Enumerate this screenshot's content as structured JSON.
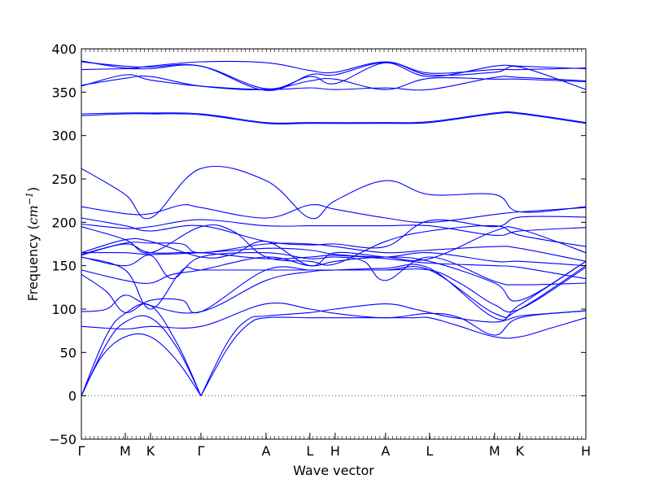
{
  "chart_data": {
    "type": "line",
    "xlabel": "Wave vector",
    "ylabel": "Frequency (cm⁻¹)",
    "ylabel_prefix": "Frequency (",
    "ylabel_unit": "cm",
    "ylabel_exp": "−1",
    "ylabel_suffix": ")",
    "ylim": [
      -50,
      400
    ],
    "yticks": [
      -50,
      0,
      50,
      100,
      150,
      200,
      250,
      300,
      350,
      400
    ],
    "ytick_labels": [
      "−50",
      "0",
      "50",
      "100",
      "150",
      "200",
      "250",
      "300",
      "350",
      "400"
    ],
    "xlim": [
      0,
      1
    ],
    "xticks": [
      {
        "label": "Γ",
        "x": 0.0
      },
      {
        "label": "M",
        "x": 0.087
      },
      {
        "label": "K",
        "x": 0.137
      },
      {
        "label": "Γ",
        "x": 0.237
      },
      {
        "label": "A",
        "x": 0.366
      },
      {
        "label": "L",
        "x": 0.453
      },
      {
        "label": "H",
        "x": 0.503
      },
      {
        "label": "A",
        "x": 0.603
      },
      {
        "label": "L",
        "x": 0.69
      },
      {
        "label": "M",
        "x": 0.819
      },
      {
        "label": "K",
        "x": 0.869
      },
      {
        "label": "H",
        "x": 1.0
      }
    ],
    "zero_line": {
      "y": 0,
      "style": "dotted"
    },
    "series_color": "#0000ff",
    "grid": false,
    "series": [
      {
        "x": [
          0,
          0.04,
          0.087,
          0.137,
          0.19,
          0.237
        ],
        "values": [
          0,
          45,
          68,
          68,
          40,
          0
        ]
      },
      {
        "x": [
          0,
          0.05,
          0.087,
          0.137,
          0.19,
          0.237
        ],
        "values": [
          0,
          60,
          85,
          90,
          55,
          0
        ]
      },
      {
        "x": [
          0,
          0.05,
          0.087,
          0.137,
          0.19,
          0.237
        ],
        "values": [
          0,
          70,
          95,
          104,
          60,
          0
        ]
      },
      {
        "x": [
          0.237,
          0.29,
          0.33,
          0.366,
          0.453,
          0.503,
          0.603,
          0.66,
          0.69,
          0.74,
          0.819,
          0.869,
          0.93,
          1.0
        ],
        "values": [
          0,
          55,
          82,
          90,
          90,
          90,
          90,
          90,
          90,
          82,
          68,
          68,
          78,
          90
        ]
      },
      {
        "x": [
          0.237,
          0.29,
          0.33,
          0.366,
          0.453,
          0.503,
          0.603,
          0.66,
          0.69,
          0.74,
          0.819,
          0.869,
          0.93,
          1.0
        ],
        "values": [
          0,
          62,
          88,
          92,
          96,
          100,
          106,
          100,
          96,
          90,
          85,
          92,
          95,
          98
        ]
      },
      {
        "x": [
          0,
          0.087,
          0.137,
          0.237,
          0.366,
          0.453,
          0.503,
          0.603,
          0.69,
          0.75,
          0.819,
          0.869,
          1.0
        ],
        "values": [
          80,
          77,
          80,
          80,
          106,
          100,
          95,
          90,
          95,
          90,
          70,
          90,
          98
        ]
      },
      {
        "x": [
          0,
          0.05,
          0.087,
          0.137,
          0.237,
          0.366,
          0.453,
          0.503,
          0.603,
          0.69,
          0.819,
          0.869,
          1.0
        ],
        "values": [
          97,
          100,
          116,
          104,
          97,
          133,
          143,
          145,
          147,
          147,
          90,
          105,
          155
        ]
      },
      {
        "x": [
          0,
          0.05,
          0.087,
          0.137,
          0.2,
          0.237,
          0.366,
          0.453,
          0.503,
          0.603,
          0.69,
          0.819,
          0.869,
          1.0
        ],
        "values": [
          140,
          120,
          96,
          110,
          110,
          97,
          145,
          145,
          145,
          145,
          145,
          95,
          100,
          150
        ]
      },
      {
        "x": [
          0,
          0.087,
          0.137,
          0.2,
          0.237,
          0.366,
          0.453,
          0.503,
          0.603,
          0.69,
          0.75,
          0.819,
          0.869,
          1.0
        ],
        "values": [
          160,
          145,
          100,
          145,
          145,
          145,
          145,
          145,
          145,
          145,
          130,
          105,
          100,
          148
        ]
      },
      {
        "x": [
          0,
          0.087,
          0.137,
          0.18,
          0.237,
          0.366,
          0.453,
          0.503,
          0.603,
          0.69,
          0.819,
          0.869,
          1.0
        ],
        "values": [
          145,
          133,
          130,
          140,
          145,
          160,
          150,
          155,
          160,
          155,
          130,
          110,
          155
        ]
      },
      {
        "x": [
          0,
          0.087,
          0.137,
          0.18,
          0.237,
          0.366,
          0.453,
          0.503,
          0.56,
          0.603,
          0.69,
          0.819,
          0.869,
          1.0
        ],
        "values": [
          160,
          150,
          162,
          135,
          160,
          165,
          158,
          160,
          155,
          133,
          160,
          132,
          128,
          130
        ]
      },
      {
        "x": [
          0,
          0.087,
          0.137,
          0.237,
          0.366,
          0.453,
          0.503,
          0.603,
          0.69,
          0.819,
          0.869,
          1.0
        ],
        "values": [
          162,
          175,
          165,
          165,
          158,
          160,
          162,
          158,
          153,
          150,
          148,
          135
        ]
      },
      {
        "x": [
          0,
          0.087,
          0.137,
          0.237,
          0.366,
          0.453,
          0.503,
          0.603,
          0.69,
          0.819,
          0.869,
          1.0
        ],
        "values": [
          165,
          165,
          163,
          165,
          170,
          168,
          163,
          160,
          165,
          155,
          155,
          150
        ]
      },
      {
        "x": [
          0,
          0.087,
          0.137,
          0.2,
          0.237,
          0.366,
          0.453,
          0.503,
          0.603,
          0.69,
          0.819,
          0.869,
          1.0
        ],
        "values": [
          163,
          176,
          176,
          175,
          165,
          175,
          175,
          172,
          165,
          168,
          172,
          170,
          155
        ]
      },
      {
        "x": [
          0,
          0.087,
          0.137,
          0.237,
          0.3,
          0.366,
          0.453,
          0.503,
          0.603,
          0.69,
          0.819,
          0.869,
          1.0
        ],
        "values": [
          165,
          180,
          178,
          160,
          163,
          178,
          150,
          165,
          160,
          158,
          190,
          192,
          165
        ]
      },
      {
        "x": [
          0,
          0.087,
          0.137,
          0.237,
          0.3,
          0.366,
          0.453,
          0.503,
          0.603,
          0.69,
          0.819,
          0.869,
          1.0
        ],
        "values": [
          195,
          180,
          165,
          195,
          190,
          160,
          155,
          152,
          178,
          190,
          196,
          185,
          172
        ]
      },
      {
        "x": [
          0,
          0.087,
          0.137,
          0.237,
          0.366,
          0.453,
          0.503,
          0.603,
          0.69,
          0.819,
          0.869,
          1.0
        ],
        "values": [
          198,
          193,
          195,
          203,
          196,
          196,
          196,
          196,
          196,
          185,
          190,
          194
        ]
      },
      {
        "x": [
          0,
          0.087,
          0.137,
          0.237,
          0.366,
          0.453,
          0.503,
          0.603,
          0.69,
          0.819,
          0.869,
          1.0
        ],
        "values": [
          205,
          196,
          190,
          196,
          178,
          174,
          175,
          172,
          202,
          195,
          206,
          206
        ]
      },
      {
        "x": [
          0,
          0.087,
          0.137,
          0.2,
          0.237,
          0.366,
          0.453,
          0.503,
          0.603,
          0.69,
          0.819,
          0.869,
          1.0
        ],
        "values": [
          218,
          210,
          210,
          220,
          217,
          205,
          220,
          215,
          205,
          200,
          209,
          212,
          217
        ]
      },
      {
        "x": [
          0,
          0.087,
          0.137,
          0.237,
          0.366,
          0.453,
          0.503,
          0.603,
          0.69,
          0.819,
          0.869,
          1.0
        ],
        "values": [
          262,
          232,
          205,
          262,
          248,
          205,
          225,
          248,
          232,
          232,
          212,
          218
        ]
      },
      {
        "x": [
          0,
          0.087,
          0.137,
          0.237,
          0.366,
          0.453,
          0.603,
          0.69,
          0.819,
          0.869,
          1.0
        ],
        "values": [
          323,
          325,
          325,
          324,
          314,
          314,
          314,
          315,
          325,
          325,
          314
        ]
      },
      {
        "x": [
          0,
          0.087,
          0.137,
          0.237,
          0.366,
          0.453,
          0.603,
          0.69,
          0.819,
          0.869,
          1.0
        ],
        "values": [
          325,
          326,
          326,
          325,
          315,
          315,
          315,
          316,
          326,
          326,
          315
        ]
      },
      {
        "x": [
          0,
          0.087,
          0.137,
          0.237,
          0.366,
          0.453,
          0.503,
          0.603,
          0.69,
          0.819,
          0.869,
          1.0
        ],
        "values": [
          357,
          370,
          364,
          357,
          353,
          355,
          353,
          355,
          353,
          367,
          367,
          363
        ]
      },
      {
        "x": [
          0,
          0.087,
          0.137,
          0.237,
          0.366,
          0.453,
          0.503,
          0.603,
          0.69,
          0.819,
          0.869,
          1.0
        ],
        "values": [
          358,
          366,
          368,
          357,
          353,
          363,
          365,
          353,
          366,
          365,
          365,
          362
        ]
      },
      {
        "x": [
          0,
          0.087,
          0.137,
          0.237,
          0.366,
          0.453,
          0.503,
          0.603,
          0.69,
          0.819,
          0.869,
          1.0
        ],
        "values": [
          376,
          377,
          377,
          380,
          354,
          368,
          360,
          384,
          370,
          373,
          379,
          353
        ]
      },
      {
        "x": [
          0,
          0.087,
          0.137,
          0.237,
          0.366,
          0.453,
          0.503,
          0.603,
          0.69,
          0.819,
          0.869,
          1.0
        ],
        "values": [
          385,
          380,
          379,
          380,
          352,
          370,
          370,
          384,
          368,
          380,
          380,
          377
        ]
      },
      {
        "x": [
          0,
          0.087,
          0.137,
          0.237,
          0.366,
          0.453,
          0.503,
          0.603,
          0.69,
          0.819,
          0.869,
          1.0
        ],
        "values": [
          386,
          378,
          380,
          385,
          384,
          375,
          373,
          385,
          372,
          376,
          376,
          378
        ]
      }
    ]
  }
}
